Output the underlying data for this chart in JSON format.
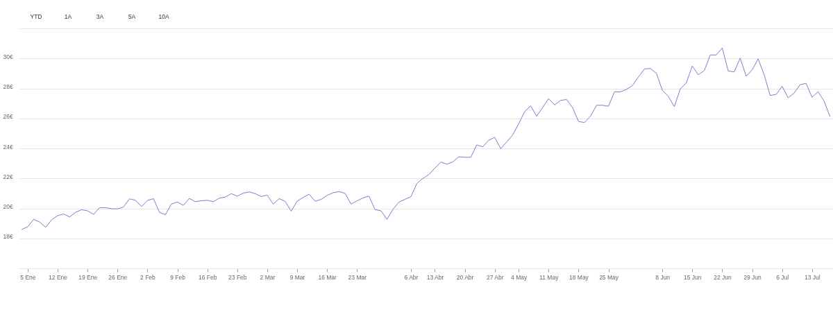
{
  "chart_data": {
    "type": "line",
    "annotations": [
      "YTD",
      "1A",
      "3A",
      "5A",
      "10A"
    ],
    "categories": [
      null,
      "5 Ene",
      null,
      null,
      null,
      null,
      "12 Ene",
      null,
      null,
      null,
      null,
      "19 Ene",
      null,
      null,
      null,
      null,
      "26 Ene",
      null,
      null,
      null,
      null,
      "2 Feb",
      null,
      null,
      null,
      null,
      "9 Feb",
      null,
      null,
      null,
      null,
      "16 Feb",
      null,
      null,
      null,
      null,
      "23 Feb",
      null,
      null,
      null,
      null,
      "2 Mar",
      null,
      null,
      null,
      null,
      "9 Mar",
      null,
      null,
      null,
      null,
      "16 Mar",
      null,
      null,
      null,
      null,
      "23 Mar",
      null,
      null,
      null,
      null,
      null,
      null,
      null,
      null,
      "6 Abr",
      null,
      null,
      null,
      "13 Abr",
      null,
      null,
      null,
      null,
      "20 Abr",
      null,
      null,
      null,
      null,
      "27 Abr",
      null,
      null,
      null,
      "4 May",
      null,
      null,
      null,
      null,
      "11 May",
      null,
      null,
      null,
      null,
      "18 May",
      null,
      null,
      null,
      null,
      "25 May",
      null,
      null,
      null,
      null,
      null,
      null,
      null,
      null,
      "8 Jun",
      null,
      null,
      null,
      null,
      "15 Jun",
      null,
      null,
      null,
      null,
      "22 Jun",
      null,
      null,
      null,
      null,
      "29 Jun",
      null,
      null,
      null,
      null,
      "6 Jul",
      null,
      null,
      null,
      null,
      "13 Jul",
      null,
      null,
      null
    ],
    "series": [
      {
        "color": "#7c7cd2",
        "values": [
          18.59,
          18.78,
          19.27,
          19.09,
          18.74,
          19.24,
          19.52,
          19.63,
          19.43,
          19.74,
          19.91,
          19.84,
          19.6,
          20.05,
          20.05,
          19.98,
          19.97,
          20.09,
          20.64,
          20.54,
          20.12,
          20.53,
          20.65,
          19.74,
          19.58,
          20.29,
          20.43,
          20.2,
          20.67,
          20.45,
          20.51,
          20.54,
          20.45,
          20.68,
          20.76,
          20.98,
          20.82,
          21.02,
          21.1,
          20.98,
          20.79,
          20.89,
          20.29,
          20.65,
          20.47,
          19.81,
          20.48,
          20.73,
          20.95,
          20.48,
          20.6,
          20.87,
          21.04,
          21.12,
          21.01,
          20.29,
          20.5,
          20.7,
          20.82,
          19.92,
          19.84,
          19.27,
          19.94,
          20.42,
          20.6,
          20.78,
          21.67,
          22.0,
          22.26,
          22.68,
          23.09,
          22.95,
          23.1,
          23.44,
          23.41,
          23.41,
          24.23,
          24.11,
          24.54,
          24.74,
          23.98,
          24.43,
          24.9,
          25.64,
          26.46,
          26.83,
          26.15,
          26.72,
          27.32,
          26.9,
          27.2,
          27.26,
          26.72,
          25.79,
          25.73,
          26.15,
          26.87,
          26.88,
          26.81,
          27.77,
          27.77,
          27.94,
          28.19,
          28.76,
          29.3,
          29.33,
          29.01,
          27.88,
          27.46,
          26.79,
          27.97,
          28.37,
          29.5,
          28.91,
          29.19,
          30.23,
          30.23,
          30.7,
          29.16,
          29.1,
          30.02,
          28.81,
          29.24,
          29.97,
          28.91,
          27.53,
          27.6,
          28.14,
          27.38,
          27.69,
          28.25,
          28.34,
          27.41,
          27.78,
          27.16,
          26.12
        ]
      }
    ],
    "ylim": [
      16,
      32
    ],
    "yticks": [
      {
        "value": 16,
        "label": null
      },
      {
        "value": 18,
        "label": "18€"
      },
      {
        "value": 20,
        "label": "20€"
      },
      {
        "value": 22,
        "label": "22€"
      },
      {
        "value": 24,
        "label": "24€"
      },
      {
        "value": 26,
        "label": "26€"
      },
      {
        "value": 28,
        "label": "28€"
      },
      {
        "value": 30,
        "label": "30€"
      },
      {
        "value": 32,
        "label": null
      }
    ],
    "grid": "y",
    "marker": "none",
    "line_style": "solid"
  }
}
